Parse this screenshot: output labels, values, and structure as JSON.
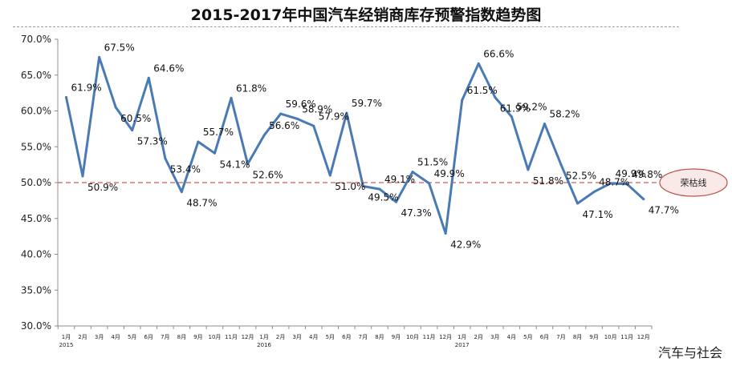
{
  "chart_data": {
    "type": "line",
    "title": "2015-2017年中国汽车经销商库存预警指数趋势图",
    "xlabel": "",
    "ylabel": "",
    "ylim": [
      30,
      70
    ],
    "y_ticks": [
      "70.0%",
      "65.0%",
      "60.0%",
      "55.0%",
      "50.0%",
      "45.0%",
      "40.0%",
      "35.0%",
      "30.0%"
    ],
    "grid": false,
    "x_labels": [
      "1月",
      "2月",
      "3月",
      "4月",
      "5月",
      "6月",
      "7月",
      "8月",
      "9月",
      "10月",
      "11月",
      "12月",
      "1月",
      "2月",
      "3月",
      "4月",
      "5月",
      "6月",
      "7月",
      "8月",
      "9月",
      "10月",
      "11月",
      "12月",
      "1月",
      "2月",
      "3月",
      "4月",
      "5月",
      "6月",
      "7月",
      "8月",
      "9月",
      "10月",
      "11月",
      "12月"
    ],
    "year_labels": [
      {
        "index": 0,
        "label": "2015"
      },
      {
        "index": 12,
        "label": "2016"
      },
      {
        "index": 24,
        "label": "2017"
      }
    ],
    "series": [
      {
        "values": [
          61.9,
          50.9,
          67.5,
          60.5,
          57.3,
          64.6,
          53.4,
          48.7,
          55.7,
          54.1,
          61.8,
          52.6,
          56.6,
          59.6,
          58.9,
          57.9,
          51.0,
          59.7,
          49.5,
          49.1,
          47.3,
          51.5,
          49.9,
          42.9,
          61.5,
          66.6,
          61.9,
          59.2,
          51.8,
          58.2,
          52.5,
          47.1,
          48.7,
          49.9,
          49.8,
          47.7
        ]
      }
    ],
    "data_labels": [
      "61.9%",
      "50.9%",
      "67.5%",
      "60.5%",
      "57.3%",
      "64.6%",
      "53.4%",
      "48.7%",
      "55.7%",
      "54.1%",
      "61.8%",
      "52.6%",
      "56.6%",
      "59.6%",
      "58.9%",
      "57.9%",
      "51.0%",
      "59.7%",
      "49.5%",
      "49.1%",
      "47.3%",
      "51.5%",
      "49.9%",
      "42.9%",
      "61.5%",
      "66.6%",
      "61.9%",
      "59.2%",
      "51.8%",
      "58.2%",
      "52.5%",
      "47.1%",
      "48.7%",
      "49.9%",
      "49.8%",
      "47.7%"
    ],
    "reference_line": {
      "value": 50,
      "label": "荣枯线"
    },
    "colors": {
      "line": "#4a7ab5",
      "reference": "#d9595b",
      "callout_fill": "#f9e9e9",
      "callout_stroke": "#c0504d"
    }
  },
  "source": "汽车与社会"
}
